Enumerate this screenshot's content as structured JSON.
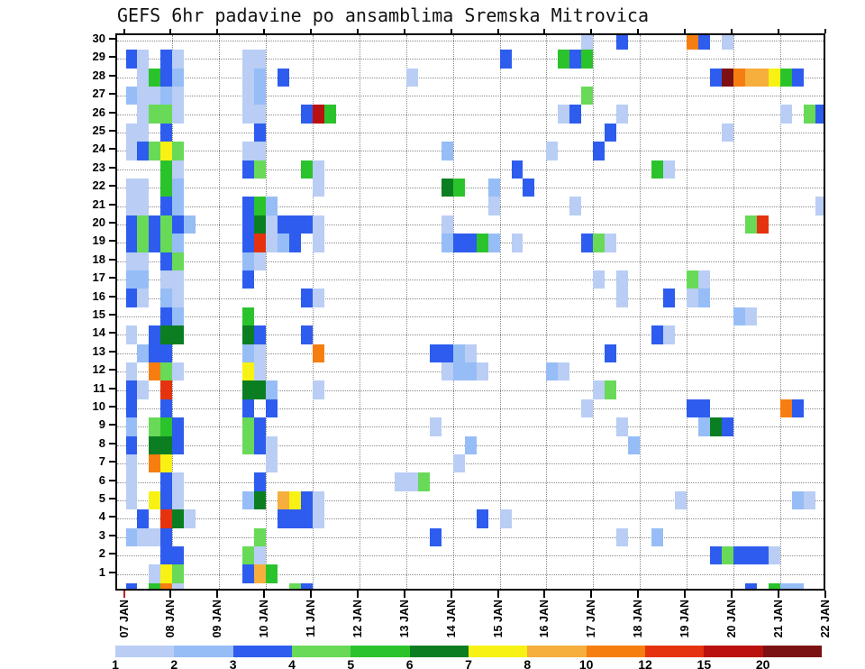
{
  "title": "GEFS 6hr padavine po ansamblima Sremska Mitrovica",
  "chart_data": {
    "type": "heatmap",
    "title": "GEFS 6hr padavine po ansamblima Sremska Mitrovica",
    "grid": "dotted",
    "x_axis": {
      "tick_labels": [
        "07 JAN",
        "08 JAN",
        "09 JAN",
        "10 JAN",
        "11 JAN",
        "12 JAN",
        "13 JAN",
        "14 JAN",
        "15 JAN",
        "16 JAN",
        "17 JAN",
        "18 JAN",
        "19 JAN",
        "20 JAN",
        "21 JAN",
        "22 JAN"
      ],
      "steps_per_day": 4,
      "total_steps": 60,
      "first_tick_marker_color": "#bb2222"
    },
    "y_axis": {
      "tick_labels": [
        "1",
        "2",
        "3",
        "4",
        "5",
        "6",
        "7",
        "8",
        "9",
        "10",
        "11",
        "12",
        "13",
        "14",
        "15",
        "16",
        "17",
        "18",
        "19",
        "20",
        "21",
        "22",
        "23",
        "24",
        "25",
        "26",
        "27",
        "28",
        "29",
        "30"
      ],
      "min": 1,
      "max": 30
    },
    "colorbar": {
      "tick_labels": [
        "1",
        "2",
        "3",
        "4",
        "5",
        "6",
        "7",
        "8",
        "10",
        "12",
        "15",
        "20"
      ],
      "colors": [
        "#b9cdf5",
        "#96bdf6",
        "#2d5cee",
        "#68da58",
        "#2bc32b",
        "#0b7e22",
        "#f7f214",
        "#f6ae3d",
        "#f67e10",
        "#e5330f",
        "#ba1110",
        "#7c1113"
      ]
    },
    "cells": [
      [
        30,
        39,
        1
      ],
      [
        30,
        42,
        3
      ],
      [
        30,
        48,
        9
      ],
      [
        30,
        49,
        3
      ],
      [
        30,
        51,
        1
      ],
      [
        29,
        0,
        3
      ],
      [
        29,
        1,
        1
      ],
      [
        29,
        3,
        3
      ],
      [
        29,
        4,
        1
      ],
      [
        29,
        10,
        1
      ],
      [
        29,
        11,
        1
      ],
      [
        29,
        32,
        3
      ],
      [
        29,
        37,
        5
      ],
      [
        29,
        38,
        3
      ],
      [
        29,
        39,
        5
      ],
      [
        28,
        1,
        1
      ],
      [
        28,
        2,
        5
      ],
      [
        28,
        3,
        3
      ],
      [
        28,
        4,
        2
      ],
      [
        28,
        10,
        1
      ],
      [
        28,
        11,
        2
      ],
      [
        28,
        13,
        3
      ],
      [
        28,
        24,
        1
      ],
      [
        28,
        50,
        3
      ],
      [
        28,
        51,
        12
      ],
      [
        28,
        52,
        9
      ],
      [
        28,
        53,
        8
      ],
      [
        28,
        54,
        8
      ],
      [
        28,
        55,
        7
      ],
      [
        28,
        56,
        5
      ],
      [
        28,
        57,
        3
      ],
      [
        27,
        0,
        2
      ],
      [
        27,
        1,
        1
      ],
      [
        27,
        2,
        1
      ],
      [
        27,
        3,
        2
      ],
      [
        27,
        4,
        1
      ],
      [
        27,
        10,
        1
      ],
      [
        27,
        11,
        2
      ],
      [
        27,
        39,
        4
      ],
      [
        26,
        1,
        1
      ],
      [
        26,
        2,
        4
      ],
      [
        26,
        3,
        4
      ],
      [
        26,
        4,
        1
      ],
      [
        26,
        10,
        1
      ],
      [
        26,
        11,
        1
      ],
      [
        26,
        15,
        3
      ],
      [
        26,
        16,
        11
      ],
      [
        26,
        17,
        5
      ],
      [
        26,
        37,
        1
      ],
      [
        26,
        38,
        3
      ],
      [
        26,
        42,
        1
      ],
      [
        26,
        56,
        1
      ],
      [
        26,
        58,
        4
      ],
      [
        26,
        59,
        3
      ],
      [
        25,
        0,
        1
      ],
      [
        25,
        1,
        1
      ],
      [
        25,
        3,
        3
      ],
      [
        25,
        11,
        3
      ],
      [
        25,
        41,
        3
      ],
      [
        25,
        51,
        1
      ],
      [
        24,
        0,
        1
      ],
      [
        24,
        1,
        3
      ],
      [
        24,
        2,
        4
      ],
      [
        24,
        3,
        7
      ],
      [
        24,
        4,
        4
      ],
      [
        24,
        10,
        1
      ],
      [
        24,
        11,
        1
      ],
      [
        24,
        27,
        2
      ],
      [
        24,
        36,
        1
      ],
      [
        24,
        40,
        3
      ],
      [
        23,
        3,
        5
      ],
      [
        23,
        4,
        1
      ],
      [
        23,
        10,
        3
      ],
      [
        23,
        11,
        4
      ],
      [
        23,
        15,
        5
      ],
      [
        23,
        16,
        1
      ],
      [
        23,
        33,
        3
      ],
      [
        23,
        45,
        5
      ],
      [
        23,
        46,
        1
      ],
      [
        22,
        0,
        1
      ],
      [
        22,
        1,
        1
      ],
      [
        22,
        3,
        5
      ],
      [
        22,
        4,
        2
      ],
      [
        22,
        16,
        1
      ],
      [
        22,
        27,
        6
      ],
      [
        22,
        28,
        5
      ],
      [
        22,
        31,
        2
      ],
      [
        22,
        34,
        3
      ],
      [
        21,
        0,
        1
      ],
      [
        21,
        1,
        1
      ],
      [
        21,
        3,
        3
      ],
      [
        21,
        4,
        2
      ],
      [
        21,
        10,
        3
      ],
      [
        21,
        11,
        5
      ],
      [
        21,
        12,
        2
      ],
      [
        21,
        31,
        1
      ],
      [
        21,
        38,
        1
      ],
      [
        21,
        59,
        1
      ],
      [
        20,
        0,
        3
      ],
      [
        20,
        1,
        4
      ],
      [
        20,
        2,
        3
      ],
      [
        20,
        3,
        4
      ],
      [
        20,
        4,
        3
      ],
      [
        20,
        5,
        2
      ],
      [
        20,
        10,
        3
      ],
      [
        20,
        11,
        6
      ],
      [
        20,
        12,
        1
      ],
      [
        20,
        13,
        3
      ],
      [
        20,
        14,
        3
      ],
      [
        20,
        15,
        3
      ],
      [
        20,
        16,
        1
      ],
      [
        20,
        27,
        1
      ],
      [
        20,
        53,
        4
      ],
      [
        20,
        54,
        10
      ],
      [
        19,
        0,
        3
      ],
      [
        19,
        1,
        4
      ],
      [
        19,
        2,
        3
      ],
      [
        19,
        3,
        4
      ],
      [
        19,
        4,
        2
      ],
      [
        19,
        10,
        3
      ],
      [
        19,
        11,
        10
      ],
      [
        19,
        12,
        1
      ],
      [
        19,
        13,
        2
      ],
      [
        19,
        14,
        3
      ],
      [
        19,
        16,
        1
      ],
      [
        19,
        27,
        2
      ],
      [
        19,
        28,
        3
      ],
      [
        19,
        29,
        3
      ],
      [
        19,
        30,
        5
      ],
      [
        19,
        31,
        2
      ],
      [
        19,
        33,
        1
      ],
      [
        19,
        39,
        3
      ],
      [
        19,
        40,
        4
      ],
      [
        19,
        41,
        1
      ],
      [
        18,
        0,
        1
      ],
      [
        18,
        1,
        1
      ],
      [
        18,
        3,
        3
      ],
      [
        18,
        4,
        4
      ],
      [
        18,
        10,
        2
      ],
      [
        18,
        11,
        1
      ],
      [
        17,
        0,
        2
      ],
      [
        17,
        1,
        2
      ],
      [
        17,
        3,
        1
      ],
      [
        17,
        4,
        1
      ],
      [
        17,
        10,
        3
      ],
      [
        17,
        40,
        1
      ],
      [
        17,
        42,
        1
      ],
      [
        17,
        48,
        4
      ],
      [
        17,
        49,
        1
      ],
      [
        16,
        0,
        3
      ],
      [
        16,
        1,
        1
      ],
      [
        16,
        3,
        2
      ],
      [
        16,
        4,
        1
      ],
      [
        16,
        15,
        3
      ],
      [
        16,
        16,
        1
      ],
      [
        16,
        42,
        1
      ],
      [
        16,
        46,
        3
      ],
      [
        16,
        48,
        1
      ],
      [
        16,
        49,
        2
      ],
      [
        15,
        3,
        3
      ],
      [
        15,
        4,
        2
      ],
      [
        15,
        10,
        5
      ],
      [
        15,
        52,
        2
      ],
      [
        15,
        53,
        1
      ],
      [
        14,
        0,
        1
      ],
      [
        14,
        2,
        3
      ],
      [
        14,
        3,
        6
      ],
      [
        14,
        4,
        6
      ],
      [
        14,
        10,
        6
      ],
      [
        14,
        11,
        3
      ],
      [
        14,
        15,
        3
      ],
      [
        14,
        45,
        3
      ],
      [
        14,
        46,
        1
      ],
      [
        13,
        1,
        2
      ],
      [
        13,
        2,
        3
      ],
      [
        13,
        3,
        3
      ],
      [
        13,
        10,
        2
      ],
      [
        13,
        11,
        1
      ],
      [
        13,
        16,
        9
      ],
      [
        13,
        26,
        3
      ],
      [
        13,
        27,
        3
      ],
      [
        13,
        28,
        2
      ],
      [
        13,
        29,
        1
      ],
      [
        13,
        41,
        3
      ],
      [
        12,
        0,
        1
      ],
      [
        12,
        2,
        9
      ],
      [
        12,
        3,
        4
      ],
      [
        12,
        4,
        1
      ],
      [
        12,
        10,
        7
      ],
      [
        12,
        11,
        1
      ],
      [
        12,
        27,
        1
      ],
      [
        12,
        28,
        2
      ],
      [
        12,
        29,
        2
      ],
      [
        12,
        30,
        1
      ],
      [
        12,
        36,
        2
      ],
      [
        12,
        37,
        1
      ],
      [
        11,
        0,
        3
      ],
      [
        11,
        1,
        1
      ],
      [
        11,
        3,
        10
      ],
      [
        11,
        10,
        6
      ],
      [
        11,
        11,
        6
      ],
      [
        11,
        12,
        2
      ],
      [
        11,
        16,
        1
      ],
      [
        11,
        40,
        1
      ],
      [
        11,
        41,
        4
      ],
      [
        10,
        0,
        3
      ],
      [
        10,
        3,
        3
      ],
      [
        10,
        10,
        3
      ],
      [
        10,
        12,
        3
      ],
      [
        10,
        39,
        1
      ],
      [
        10,
        48,
        3
      ],
      [
        10,
        49,
        3
      ],
      [
        10,
        56,
        9
      ],
      [
        10,
        57,
        3
      ],
      [
        9,
        0,
        2
      ],
      [
        9,
        2,
        4
      ],
      [
        9,
        3,
        5
      ],
      [
        9,
        4,
        3
      ],
      [
        9,
        10,
        4
      ],
      [
        9,
        11,
        3
      ],
      [
        9,
        26,
        1
      ],
      [
        9,
        42,
        1
      ],
      [
        9,
        49,
        2
      ],
      [
        9,
        50,
        6
      ],
      [
        9,
        51,
        3
      ],
      [
        8,
        0,
        3
      ],
      [
        8,
        2,
        6
      ],
      [
        8,
        3,
        6
      ],
      [
        8,
        4,
        3
      ],
      [
        8,
        10,
        4
      ],
      [
        8,
        11,
        3
      ],
      [
        8,
        12,
        1
      ],
      [
        8,
        29,
        2
      ],
      [
        8,
        43,
        2
      ],
      [
        7,
        0,
        1
      ],
      [
        7,
        2,
        9
      ],
      [
        7,
        3,
        7
      ],
      [
        7,
        12,
        1
      ],
      [
        7,
        28,
        1
      ],
      [
        6,
        0,
        1
      ],
      [
        6,
        3,
        3
      ],
      [
        6,
        4,
        1
      ],
      [
        6,
        11,
        3
      ],
      [
        6,
        23,
        1
      ],
      [
        6,
        24,
        1
      ],
      [
        6,
        25,
        4
      ],
      [
        5,
        0,
        1
      ],
      [
        5,
        2,
        7
      ],
      [
        5,
        3,
        3
      ],
      [
        5,
        4,
        1
      ],
      [
        5,
        10,
        2
      ],
      [
        5,
        11,
        6
      ],
      [
        5,
        13,
        8
      ],
      [
        5,
        14,
        7
      ],
      [
        5,
        15,
        3
      ],
      [
        5,
        16,
        1
      ],
      [
        5,
        47,
        1
      ],
      [
        5,
        57,
        2
      ],
      [
        5,
        58,
        1
      ],
      [
        4,
        1,
        3
      ],
      [
        4,
        3,
        10
      ],
      [
        4,
        4,
        6
      ],
      [
        4,
        5,
        1
      ],
      [
        4,
        13,
        3
      ],
      [
        4,
        14,
        3
      ],
      [
        4,
        15,
        3
      ],
      [
        4,
        16,
        1
      ],
      [
        4,
        30,
        3
      ],
      [
        4,
        32,
        1
      ],
      [
        3,
        0,
        2
      ],
      [
        3,
        1,
        1
      ],
      [
        3,
        2,
        1
      ],
      [
        3,
        3,
        3
      ],
      [
        3,
        11,
        4
      ],
      [
        3,
        26,
        3
      ],
      [
        3,
        42,
        1
      ],
      [
        3,
        45,
        2
      ],
      [
        2,
        3,
        3
      ],
      [
        2,
        4,
        3
      ],
      [
        2,
        10,
        4
      ],
      [
        2,
        11,
        1
      ],
      [
        2,
        50,
        3
      ],
      [
        2,
        51,
        4
      ],
      [
        2,
        52,
        3
      ],
      [
        2,
        53,
        3
      ],
      [
        2,
        54,
        3
      ],
      [
        2,
        55,
        1
      ],
      [
        1,
        2,
        1
      ],
      [
        1,
        3,
        7
      ],
      [
        1,
        4,
        4
      ],
      [
        1,
        10,
        3
      ],
      [
        1,
        11,
        8
      ],
      [
        1,
        12,
        5
      ],
      [
        0,
        0,
        3
      ],
      [
        0,
        2,
        5
      ],
      [
        0,
        3,
        9
      ],
      [
        0,
        4,
        1
      ],
      [
        0,
        14,
        4
      ],
      [
        0,
        15,
        3
      ],
      [
        0,
        53,
        3
      ],
      [
        0,
        55,
        5
      ],
      [
        0,
        56,
        2
      ],
      [
        0,
        57,
        2
      ]
    ]
  }
}
